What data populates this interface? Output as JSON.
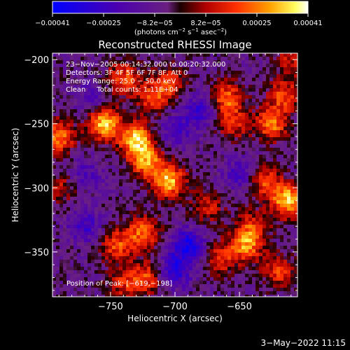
{
  "chart_data": {
    "type": "heatmap",
    "title": "Reconstructed RHESSI Image",
    "xlabel": "Heliocentric X (arcsec)",
    "ylabel": "Heliocentric Y (arcsec)",
    "xlim": [
      -795,
      -605
    ],
    "ylim": [
      -385,
      -195
    ],
    "x_ticks": [
      -750,
      -700,
      -650
    ],
    "x_tick_labels": [
      "−750",
      "−700",
      "−650"
    ],
    "y_ticks": [
      -200,
      -250,
      -300,
      -350
    ],
    "y_tick_labels": [
      "−200",
      "−250",
      "−300",
      "−350"
    ],
    "colorbar": {
      "range": [
        -0.00041,
        0.00041
      ],
      "tick_labels": [
        "−0.00041",
        "−0.00025",
        "−8.2e−05",
        "8.2e−05",
        "0.00025",
        "0.00041"
      ],
      "unit_main": "(photons cm",
      "unit_sup1": "−2",
      "unit_mid1": " s",
      "unit_sup2": "−1",
      "unit_mid2": " asec",
      "unit_sup3": "−2",
      "unit_end": ")"
    },
    "info_lines": [
      "23−Nov−2005 00:14:32.000 to 00:20:32.000",
      "Detectors: 3F 4F 5F 6F 7F 8F, Att 0",
      "Energy Range: 25.0 − 50.0 keV",
      "Clean     Total counts: 1.11E+04"
    ],
    "peak_label": "Position of Peak: ",
    "peak_value": "[−619,−198]",
    "peak_position": [
      -619,
      -198
    ],
    "blobs": [
      {
        "x": -755,
        "y": -250,
        "amp": 0.0004
      },
      {
        "x": -730,
        "y": -262,
        "amp": 0.0004
      },
      {
        "x": -722,
        "y": -280,
        "amp": 0.00032
      },
      {
        "x": -705,
        "y": -295,
        "amp": 0.00038
      },
      {
        "x": -740,
        "y": -215,
        "amp": 0.00026
      },
      {
        "x": -718,
        "y": -230,
        "amp": 0.00022
      },
      {
        "x": -705,
        "y": -218,
        "amp": 0.00022
      },
      {
        "x": -745,
        "y": -345,
        "amp": 0.00024
      },
      {
        "x": -725,
        "y": -335,
        "amp": 0.00028
      },
      {
        "x": -722,
        "y": -370,
        "amp": 0.00024
      },
      {
        "x": -790,
        "y": -260,
        "amp": 0.0003
      },
      {
        "x": -788,
        "y": -300,
        "amp": 0.00016
      },
      {
        "x": -660,
        "y": -230,
        "amp": 0.00028
      },
      {
        "x": -655,
        "y": -250,
        "amp": 0.0002
      },
      {
        "x": -625,
        "y": -250,
        "amp": 0.0003
      },
      {
        "x": -615,
        "y": -228,
        "amp": 0.00024
      },
      {
        "x": -612,
        "y": -310,
        "amp": 0.0004
      },
      {
        "x": -630,
        "y": -295,
        "amp": 0.00024
      },
      {
        "x": -665,
        "y": -355,
        "amp": 0.0002
      },
      {
        "x": -645,
        "y": -345,
        "amp": 0.0003
      },
      {
        "x": -640,
        "y": -330,
        "amp": 0.0002
      },
      {
        "x": -620,
        "y": -365,
        "amp": 0.00022
      },
      {
        "x": -740,
        "y": -375,
        "amp": 0.00018
      },
      {
        "x": -675,
        "y": -315,
        "amp": 0.00018
      },
      {
        "x": -610,
        "y": -200,
        "amp": 0.00016
      },
      {
        "x": -680,
        "y": -240,
        "amp": -0.0002
      },
      {
        "x": -700,
        "y": -255,
        "amp": -0.00016
      },
      {
        "x": -690,
        "y": -345,
        "amp": -0.00028
      },
      {
        "x": -700,
        "y": -365,
        "amp": -0.00024
      },
      {
        "x": -770,
        "y": -330,
        "amp": -0.00018
      },
      {
        "x": -765,
        "y": -230,
        "amp": -0.00012
      },
      {
        "x": -650,
        "y": -290,
        "amp": -0.00016
      },
      {
        "x": -770,
        "y": -290,
        "amp": -0.00014
      }
    ],
    "background_level": -6e-05,
    "blob_sigma": 9
  },
  "footer": {
    "date": "3−May−2022 11:15"
  }
}
